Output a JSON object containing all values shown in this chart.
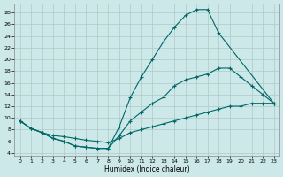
{
  "xlabel": "Humidex (Indice chaleur)",
  "bg_color": "#cde8e8",
  "grid_color": "#b0c8c8",
  "line_color": "#006666",
  "xlim": [
    -0.5,
    23.5
  ],
  "ylim": [
    3.5,
    29.5
  ],
  "xticks": [
    0,
    1,
    2,
    3,
    4,
    5,
    6,
    7,
    8,
    9,
    10,
    11,
    12,
    13,
    14,
    15,
    16,
    17,
    18,
    19,
    20,
    21,
    22,
    23
  ],
  "yticks": [
    4,
    6,
    8,
    10,
    12,
    14,
    16,
    18,
    20,
    22,
    24,
    26,
    28
  ],
  "line1_x": [
    0,
    1,
    2,
    3,
    4,
    5,
    6,
    7,
    8,
    9,
    10,
    11,
    12,
    13,
    14,
    15,
    16,
    17,
    18,
    23
  ],
  "line1_y": [
    9.5,
    8.2,
    7.5,
    6.5,
    6.0,
    5.2,
    5.0,
    4.8,
    4.8,
    8.5,
    13.5,
    17.0,
    20.0,
    23.0,
    25.5,
    27.5,
    28.5,
    28.5,
    24.5,
    12.5
  ],
  "line2_x": [
    0,
    1,
    2,
    3,
    4,
    5,
    6,
    7,
    8,
    9,
    10,
    11,
    12,
    13,
    14,
    15,
    16,
    17,
    18,
    19,
    20,
    21,
    22,
    23
  ],
  "line2_y": [
    9.5,
    8.2,
    7.5,
    6.5,
    6.0,
    5.2,
    5.0,
    4.8,
    4.8,
    7.0,
    9.5,
    11.0,
    12.5,
    13.5,
    15.5,
    16.5,
    17.0,
    17.5,
    18.5,
    18.5,
    17.0,
    15.5,
    14.0,
    12.5
  ],
  "line3_x": [
    0,
    1,
    2,
    3,
    4,
    5,
    6,
    7,
    8,
    9,
    10,
    11,
    12,
    13,
    14,
    15,
    16,
    17,
    18,
    19,
    20,
    21,
    22,
    23
  ],
  "line3_y": [
    9.5,
    8.2,
    7.5,
    7.0,
    6.8,
    6.5,
    6.2,
    6.0,
    5.8,
    6.5,
    7.5,
    8.0,
    8.5,
    9.0,
    9.5,
    10.0,
    10.5,
    11.0,
    11.5,
    12.0,
    12.0,
    12.5,
    12.5,
    12.5
  ]
}
